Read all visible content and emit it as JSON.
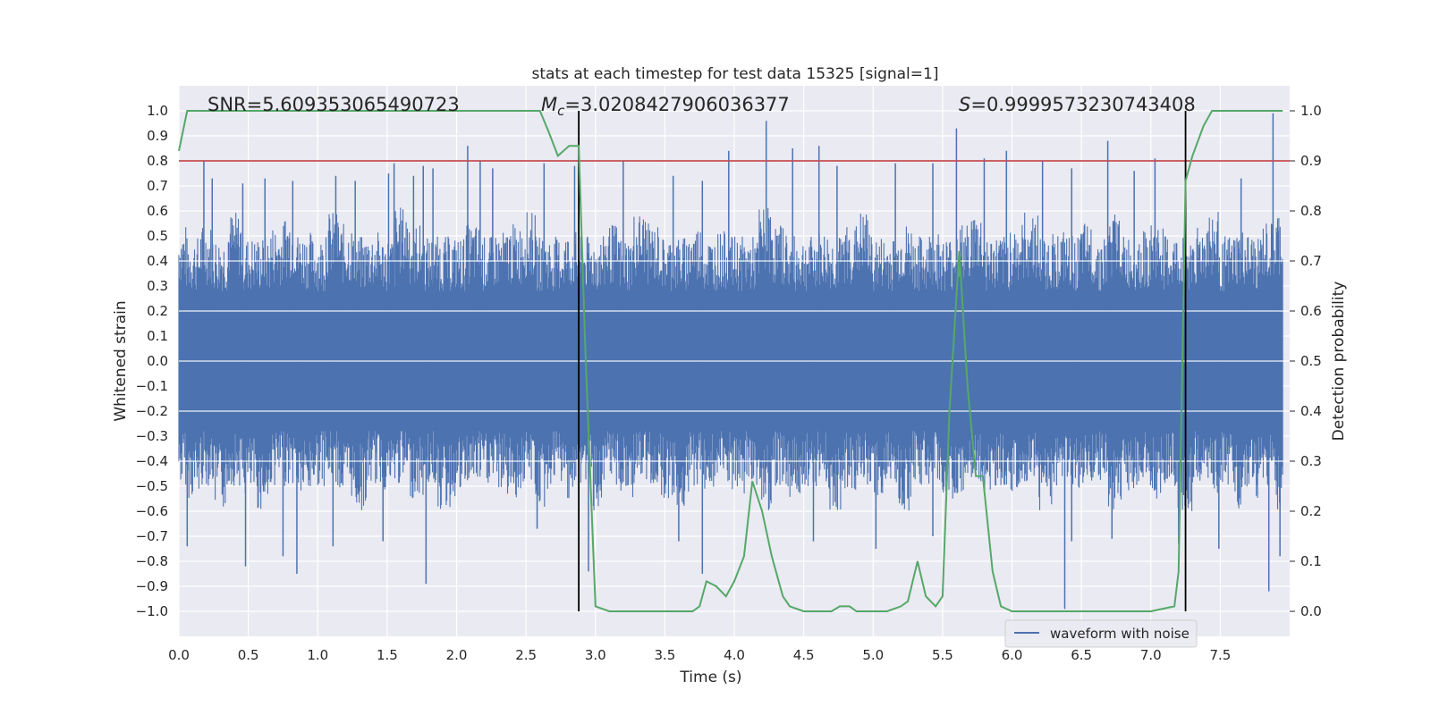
{
  "chart_data": {
    "type": "line",
    "title": "stats at each timestep for test data 15325 [signal=1]",
    "xlabel": "Time (s)",
    "ylabel_left": "Whitened strain",
    "ylabel_right": "Detection probability",
    "xlim": [
      0.0,
      8.0
    ],
    "ylim_left": [
      -1.1,
      1.1
    ],
    "ylim_right": [
      -0.05,
      1.05
    ],
    "x_ticks": [
      0.0,
      0.5,
      1.0,
      1.5,
      2.0,
      2.5,
      3.0,
      3.5,
      4.0,
      4.5,
      5.0,
      5.5,
      6.0,
      6.5,
      7.0,
      7.5
    ],
    "y_ticks_left": [
      -1.0,
      -0.9,
      -0.8,
      -0.7,
      -0.6,
      -0.5,
      -0.4,
      -0.3,
      -0.2,
      -0.1,
      0.0,
      0.1,
      0.2,
      0.3,
      0.4,
      0.5,
      0.6,
      0.7,
      0.8,
      0.9,
      1.0
    ],
    "y_ticks_right": [
      0.0,
      0.1,
      0.2,
      0.3,
      0.4,
      0.5,
      0.6,
      0.7,
      0.8,
      0.9,
      1.0
    ],
    "grid": true,
    "annotations": {
      "snr": "SNR=5.609353065490723",
      "mc_symbol": "M",
      "mc_sub": "c",
      "mc_value": "=3.0208427906036377",
      "s_symbol": "S",
      "s_value": "=0.9999573230743408"
    },
    "legend": {
      "location": "lower right",
      "entries": [
        "waveform with noise"
      ]
    },
    "threshold": {
      "value": 0.9,
      "axis": "right",
      "color": "#c44e52"
    },
    "vlines": {
      "x": [
        2.88,
        7.25
      ],
      "color": "#000000"
    },
    "series": [
      {
        "name": "waveform with noise",
        "axis": "left",
        "color": "#4c72b0",
        "envelope_positive": [
          0.55,
          0.5,
          0.55,
          0.5,
          0.6,
          0.5,
          0.5,
          0.55,
          0.6,
          0.52,
          0.5,
          0.6,
          0.55,
          0.5,
          0.52,
          0.5,
          0.62,
          0.55,
          0.5,
          0.5,
          0.5,
          0.55,
          0.5,
          0.52,
          0.55,
          0.6,
          0.5,
          0.5,
          0.52,
          0.5,
          0.5,
          0.55,
          0.5,
          0.6,
          0.55,
          0.5,
          0.5,
          0.55,
          0.5,
          0.52,
          0.5,
          0.5,
          0.62,
          0.55,
          0.5,
          0.5,
          0.52,
          0.5,
          0.55,
          0.6,
          0.5,
          0.5,
          0.55,
          0.5,
          0.52,
          0.5,
          0.55,
          0.6,
          0.5,
          0.5,
          0.55,
          0.6,
          0.5,
          0.52,
          0.5,
          0.55,
          0.5,
          0.6,
          0.5,
          0.52,
          0.55,
          0.5,
          0.5,
          0.55,
          0.6,
          0.5,
          0.52,
          0.5,
          0.55,
          0.6
        ],
        "envelope_negative": [
          -0.5,
          -0.55,
          -0.5,
          -0.6,
          -0.5,
          -0.55,
          -0.6,
          -0.5,
          -0.5,
          -0.55,
          -0.5,
          -0.5,
          -0.55,
          -0.6,
          -0.5,
          -0.52,
          -0.5,
          -0.55,
          -0.5,
          -0.6,
          -0.55,
          -0.5,
          -0.5,
          -0.52,
          -0.55,
          -0.5,
          -0.6,
          -0.5,
          -0.55,
          -0.5,
          -0.6,
          -0.5,
          -0.55,
          -0.5,
          -0.5,
          -0.55,
          -0.6,
          -0.5,
          -0.52,
          -0.5,
          -0.55,
          -0.5,
          -0.6,
          -0.5,
          -0.55,
          -0.5,
          -0.5,
          -0.6,
          -0.52,
          -0.5,
          -0.55,
          -0.5,
          -0.6,
          -0.5,
          -0.5,
          -0.55,
          -0.6,
          -0.5,
          -0.52,
          -0.5,
          -0.55,
          -0.5,
          -0.6,
          -0.5,
          -0.55,
          -0.5,
          -0.5,
          -0.6,
          -0.52,
          -0.5,
          -0.55,
          -0.5,
          -0.6,
          -0.5,
          -0.55,
          -0.5,
          -0.6,
          -0.55,
          -0.5,
          -0.6
        ],
        "peaks": [
          [
            0.18,
            0.8
          ],
          [
            0.24,
            0.73
          ],
          [
            0.46,
            0.71
          ],
          [
            0.62,
            0.73
          ],
          [
            0.82,
            0.72
          ],
          [
            1.13,
            0.74
          ],
          [
            1.27,
            0.72
          ],
          [
            1.51,
            0.75
          ],
          [
            1.55,
            0.79
          ],
          [
            1.69,
            0.74
          ],
          [
            1.76,
            0.78
          ],
          [
            1.83,
            0.77
          ],
          [
            2.08,
            0.86
          ],
          [
            2.17,
            0.8
          ],
          [
            2.26,
            0.77
          ],
          [
            2.63,
            0.79
          ],
          [
            2.85,
            0.78
          ],
          [
            3.2,
            0.8
          ],
          [
            3.56,
            0.74
          ],
          [
            3.77,
            0.72
          ],
          [
            3.96,
            0.84
          ],
          [
            4.23,
            0.96
          ],
          [
            4.42,
            0.85
          ],
          [
            4.61,
            0.86
          ],
          [
            4.74,
            0.78
          ],
          [
            5.16,
            0.79
          ],
          [
            5.43,
            0.79
          ],
          [
            5.6,
            0.93
          ],
          [
            5.8,
            0.81
          ],
          [
            5.96,
            0.84
          ],
          [
            6.22,
            0.8
          ],
          [
            6.43,
            0.77
          ],
          [
            6.69,
            0.88
          ],
          [
            6.88,
            0.76
          ],
          [
            7.03,
            0.81
          ],
          [
            7.65,
            0.73
          ],
          [
            7.88,
            0.99
          ]
        ],
        "troughs": [
          [
            0.06,
            -0.74
          ],
          [
            0.48,
            -0.82
          ],
          [
            0.75,
            -0.78
          ],
          [
            0.85,
            -0.85
          ],
          [
            1.11,
            -0.74
          ],
          [
            1.47,
            -0.72
          ],
          [
            1.78,
            -0.89
          ],
          [
            2.58,
            -0.67
          ],
          [
            2.95,
            -0.84
          ],
          [
            3.6,
            -0.72
          ],
          [
            3.77,
            -0.85
          ],
          [
            4.57,
            -0.72
          ],
          [
            5.02,
            -0.75
          ],
          [
            5.43,
            -0.7
          ],
          [
            6.38,
            -0.99
          ],
          [
            6.43,
            -0.72
          ],
          [
            6.72,
            -0.71
          ],
          [
            7.2,
            -0.73
          ],
          [
            7.49,
            -0.75
          ],
          [
            7.85,
            -0.92
          ],
          [
            7.93,
            -0.78
          ]
        ]
      },
      {
        "name": "",
        "axis": "right",
        "color": "#55a868",
        "x": [
          0.0,
          0.06,
          0.1,
          2.0,
          2.6,
          2.66,
          2.73,
          2.81,
          2.88,
          2.93,
          3.0,
          3.1,
          3.3,
          3.5,
          3.7,
          3.75,
          3.8,
          3.87,
          3.94,
          4.0,
          4.07,
          4.13,
          4.2,
          4.27,
          4.35,
          4.4,
          4.5,
          4.7,
          4.76,
          4.83,
          4.88,
          5.0,
          5.1,
          5.2,
          5.25,
          5.32,
          5.38,
          5.45,
          5.5,
          5.55,
          5.62,
          5.68,
          5.74,
          5.79,
          5.86,
          5.92,
          6.0,
          6.4,
          6.7,
          7.0,
          7.17,
          7.2,
          7.25,
          7.3,
          7.38,
          7.44,
          7.5,
          7.95
        ],
        "y": [
          0.92,
          1.0,
          1.0,
          1.0,
          1.0,
          0.96,
          0.91,
          0.93,
          0.93,
          0.5,
          0.01,
          0.0,
          0.0,
          0.0,
          0.0,
          0.01,
          0.06,
          0.05,
          0.03,
          0.06,
          0.11,
          0.26,
          0.2,
          0.11,
          0.03,
          0.01,
          0.0,
          0.0,
          0.01,
          0.01,
          0.0,
          0.0,
          0.0,
          0.01,
          0.02,
          0.1,
          0.03,
          0.01,
          0.03,
          0.4,
          0.72,
          0.45,
          0.27,
          0.27,
          0.08,
          0.01,
          0.0,
          0.0,
          0.0,
          0.0,
          0.01,
          0.08,
          0.86,
          0.91,
          0.97,
          1.0,
          1.0,
          1.0
        ]
      }
    ]
  }
}
